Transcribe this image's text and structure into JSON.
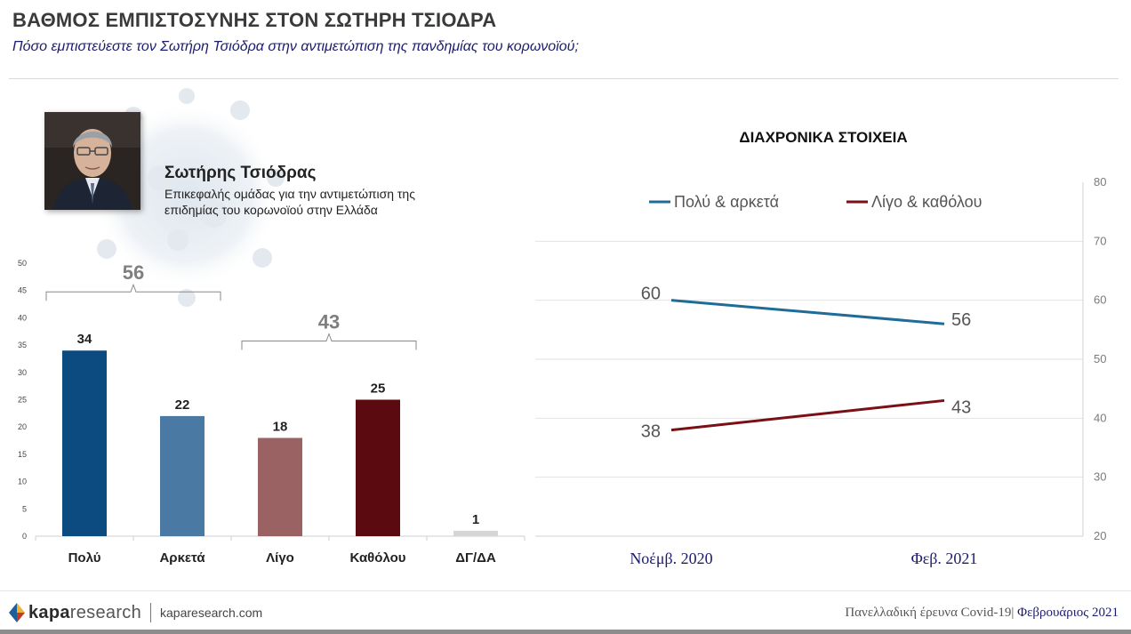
{
  "header": {
    "title": "ΒΑΘΜΟΣ ΕΜΠΙΣΤΟΣΥΝΗΣ ΣΤΟΝ ΣΩΤΗΡΗ ΤΣΙΟΔΡΑ",
    "subtitle": "Πόσο εμπιστεύεστε τον Σωτήρη Τσιόδρα στην αντιμετώπιση της πανδημίας του κορωνοϊού;"
  },
  "person": {
    "name": "Σωτήρης Τσιόδρας",
    "role": "Επικεφαλής ομάδας για την αντιμετώπιση της επιδημίας του κορωνοϊού στην Ελλάδα"
  },
  "chart_data": [
    {
      "type": "bar",
      "categories": [
        "Πολύ",
        "Αρκετά",
        "Λίγο",
        "Καθόλου",
        "ΔΓ/ΔΑ"
      ],
      "values": [
        34,
        22,
        18,
        25,
        1
      ],
      "colors": [
        "#0b4b7f",
        "#4a7aa3",
        "#9a6262",
        "#5b0a10",
        "#d6d6d6"
      ],
      "ylim": [
        0,
        50
      ],
      "yticks": [
        0,
        5,
        10,
        15,
        20,
        25,
        30,
        35,
        40,
        45,
        50
      ],
      "groups": [
        {
          "label": "56",
          "from": 0,
          "to": 1
        },
        {
          "label": "43",
          "from": 2,
          "to": 3
        }
      ]
    },
    {
      "type": "line",
      "title": "ΔΙΑΧΡΟΝΙΚΑ ΣΤΟΙΧΕΙΑ",
      "x": [
        "Νοέμβ. 2020",
        "Φεβ. 2021"
      ],
      "ylim": [
        20,
        80
      ],
      "yticks": [
        20,
        30,
        40,
        50,
        60,
        70,
        80
      ],
      "y_axis_side": "right",
      "legend_position": "top",
      "series": [
        {
          "name": "Πολύ & αρκετά",
          "values": [
            60,
            56
          ],
          "color": "#1f6c98"
        },
        {
          "name": "Λίγο & καθόλου",
          "values": [
            38,
            43
          ],
          "color": "#7a0f14"
        }
      ]
    }
  ],
  "footer": {
    "logo_bold": "kapa",
    "logo_light": "research",
    "url": "kaparesearch.com",
    "survey": "Πανελλαδική έρευνα Covid-19|",
    "date": "Φεβρουάριος 2021"
  }
}
